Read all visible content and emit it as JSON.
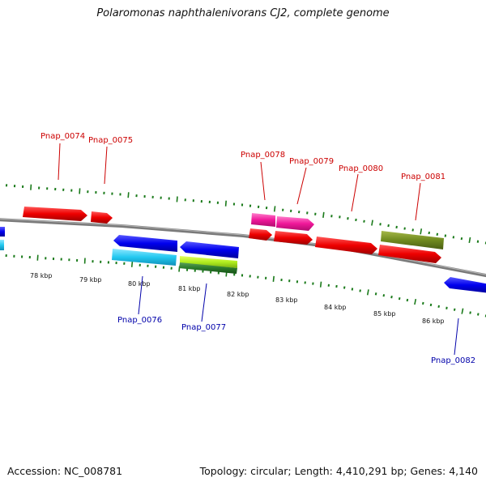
{
  "title": "Polaromonas naphthalenivorans CJ2, complete genome",
  "footer": {
    "accession": "Accession: NC_008781",
    "stats": "Topology: circular; Length: 4,410,291 bp; Genes: 4,140"
  },
  "colors": {
    "label_top": "#cc0000",
    "label_bottom": "#0000aa",
    "tick": "#1a7a1a",
    "backbone": "#808080"
  },
  "scale_labels": [
    "78 kbp",
    "79 kbp",
    "80 kbp",
    "81 kbp",
    "82 kbp",
    "83 kbp",
    "84 kbp",
    "85 kbp",
    "86 kbp"
  ],
  "genes": [
    {
      "id": "Pnap_0074",
      "label": "Pnap_0074",
      "side": "top",
      "color": "red"
    },
    {
      "id": "Pnap_0075",
      "label": "Pnap_0075",
      "side": "top",
      "color": "red"
    },
    {
      "id": "Pnap_0076",
      "label": "Pnap_0076",
      "side": "bottom",
      "color": "cyan"
    },
    {
      "id": "Pnap_0077",
      "label": "Pnap_0077",
      "side": "bottom",
      "color": "lime"
    },
    {
      "id": "Pnap_0078",
      "label": "Pnap_0078",
      "side": "top",
      "color": "pink"
    },
    {
      "id": "Pnap_0079",
      "label": "Pnap_0079",
      "side": "top",
      "color": "pink"
    },
    {
      "id": "Pnap_0080",
      "label": "Pnap_0080",
      "side": "top",
      "color": "red"
    },
    {
      "id": "Pnap_0081",
      "label": "Pnap_0081",
      "side": "top",
      "color": "red"
    },
    {
      "id": "Pnap_0082",
      "label": "Pnap_0082",
      "side": "bottom",
      "color": "blue"
    }
  ]
}
